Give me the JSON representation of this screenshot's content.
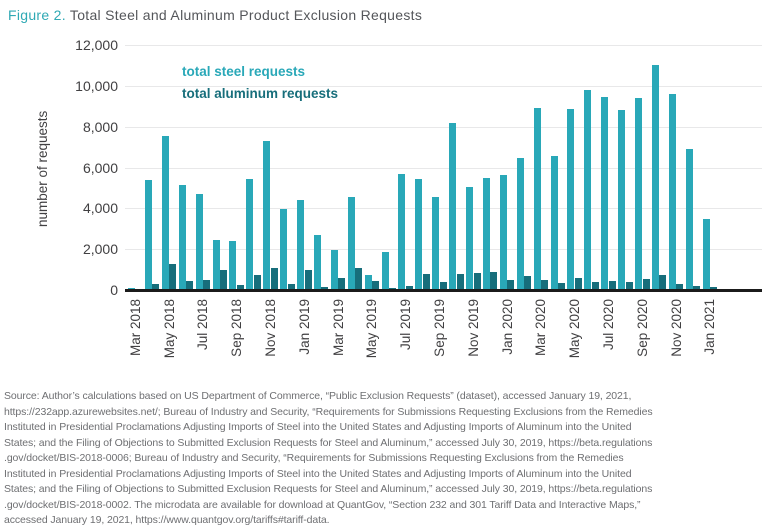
{
  "figure": {
    "label": "Figure 2.",
    "title": " Total Steel and Aluminum Product Exclusion Requests"
  },
  "chart_data": {
    "type": "bar",
    "title": "Figure 2. Total Steel and Aluminum Product Exclusion Requests",
    "xlabel": "",
    "ylabel": "number of requests",
    "ylim": [
      0,
      12000
    ],
    "ytick_step": 2000,
    "ytick_labels": [
      "0",
      "2,000",
      "4,000",
      "6,000",
      "8,000",
      "10,000",
      "12,000"
    ],
    "grid": "horizontal",
    "legend_position": "top-left-inside",
    "x_tick_label_every": 2,
    "x_tick_rotation": -90,
    "categories": [
      "Mar 2018",
      "Apr 2018",
      "May 2018",
      "Jun 2018",
      "Jul 2018",
      "Aug 2018",
      "Sep 2018",
      "Oct 2018",
      "Nov 2018",
      "Dec 2018",
      "Jan 2019",
      "Feb 2019",
      "Mar 2019",
      "Apr 2019",
      "May 2019",
      "Jun 2019",
      "Jul 2019",
      "Aug 2019",
      "Sep 2019",
      "Oct 2019",
      "Nov 2019",
      "Dec 2019",
      "Jan 2020",
      "Feb 2020",
      "Mar 2020",
      "Apr 2020",
      "May 2020",
      "Jun 2020",
      "Jul 2020",
      "Aug 2020",
      "Sep 2020",
      "Oct 2020",
      "Nov 2020",
      "Dec 2020",
      "Jan 2021"
    ],
    "series": [
      {
        "name": "total steel requests",
        "color": "#29a8b8",
        "values": [
          100,
          5400,
          7550,
          5150,
          4700,
          2450,
          2400,
          5450,
          7300,
          3950,
          4400,
          2700,
          1950,
          4550,
          750,
          1850,
          5700,
          5450,
          4550,
          8200,
          5050,
          5500,
          5650,
          6450,
          8900,
          6550,
          8850,
          9800,
          9450,
          8800,
          9400,
          11000,
          9600,
          6900,
          3500
        ]
      },
      {
        "name": "total aluminum requests",
        "color": "#176e7b",
        "values": [
          60,
          300,
          1250,
          420,
          500,
          1000,
          250,
          750,
          1100,
          300,
          1000,
          150,
          600,
          1100,
          450,
          80,
          200,
          800,
          380,
          800,
          850,
          900,
          500,
          700,
          480,
          350,
          600,
          400,
          450,
          400,
          550,
          750,
          300,
          200,
          150
        ]
      }
    ]
  },
  "legend": {
    "steel_label": "total steel requests",
    "aluminum_label": "total aluminum requests"
  },
  "colors": {
    "figure_label": "#2fa9b4",
    "title_text": "#54565a",
    "steel_bar": "#29a8b8",
    "aluminum_bar": "#176e7b",
    "axis_text": "#414042",
    "gridline": "#e8e8e9",
    "axis_line": "#1b1b1b",
    "source_text": "#6e6f72"
  },
  "source": {
    "lines": [
      "Source: Author’s calculations based on US Department of Commerce, “Public Exclusion Requests” (dataset), accessed January 19, 2021,",
      "https://232app.azurewebsites.net/; Bureau of Industry and Security, “Requirements for Submissions Requesting Exclusions from the Remedies",
      "Instituted in Presidential Proclamations Adjusting Imports of Steel into the United States and Adjusting Imports of Aluminum into the United",
      "States; and the Filing of Objections to Submitted Exclusion Requests for Steel and Aluminum,” accessed July 30, 2019, https://beta.regulations",
      ".gov/docket/BIS-2018-0006; Bureau of Industry and Security, “Requirements for Submissions Requesting Exclusions from the Remedies",
      "Instituted in Presidential Proclamations Adjusting Imports of Steel into the United States and Adjusting Imports of Aluminum into the United",
      "States; and the Filing of Objections to Submitted Exclusion Requests for Steel and Aluminum,” accessed July 30, 2019, https://beta.regulations",
      ".gov/docket/BIS-2018-0002. The microdata are available for download at QuantGov, “Section 232 and 301 Tariff Data and Interactive Maps,”",
      "accessed January 19, 2021, https://www.quantgov.org/tariffs#tariff-data."
    ]
  }
}
